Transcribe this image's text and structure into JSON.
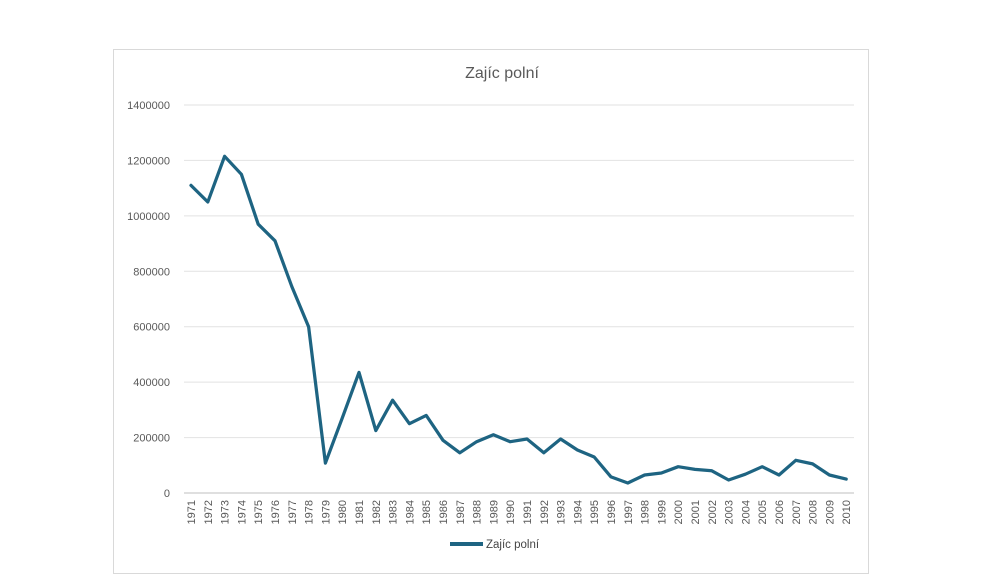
{
  "title": "Zajíc polní",
  "legend": {
    "label": "Zajíc polní",
    "position": "bottom"
  },
  "colors": {
    "line": "#1e6482",
    "grid": "#e2e2e2",
    "axis": "#bfbfbf",
    "tick_text": "#595959",
    "title_text": "#595959",
    "legend_text": "#454545",
    "frame_border": "#d9d9d9",
    "background": "#ffffff"
  },
  "chart_data": {
    "type": "line",
    "title": "Zajíc polní",
    "xlabel": "",
    "ylabel": "",
    "grid": "horizontal",
    "legend_position": "bottom",
    "ylim": [
      0,
      1400000
    ],
    "ytick_values": [
      0,
      200000,
      400000,
      600000,
      800000,
      1000000,
      1200000,
      1400000
    ],
    "x": [
      1971,
      1972,
      1973,
      1974,
      1975,
      1976,
      1977,
      1978,
      1979,
      1980,
      1981,
      1982,
      1983,
      1984,
      1985,
      1986,
      1987,
      1988,
      1989,
      1990,
      1991,
      1992,
      1993,
      1994,
      1995,
      1996,
      1997,
      1998,
      1999,
      2000,
      2001,
      2002,
      2003,
      2004,
      2005,
      2006,
      2007,
      2008,
      2009,
      2010
    ],
    "series": [
      {
        "name": "Zajíc polní",
        "values": [
          1110000,
          1050000,
          1215000,
          1150000,
          970000,
          910000,
          745000,
          600000,
          108000,
          270000,
          435000,
          225000,
          335000,
          250000,
          280000,
          190000,
          145000,
          185000,
          210000,
          185000,
          195000,
          145000,
          195000,
          155000,
          130000,
          58000,
          36000,
          65000,
          72000,
          95000,
          85000,
          80000,
          47000,
          68000,
          95000,
          65000,
          118000,
          105000,
          65000,
          50000
        ]
      }
    ]
  }
}
